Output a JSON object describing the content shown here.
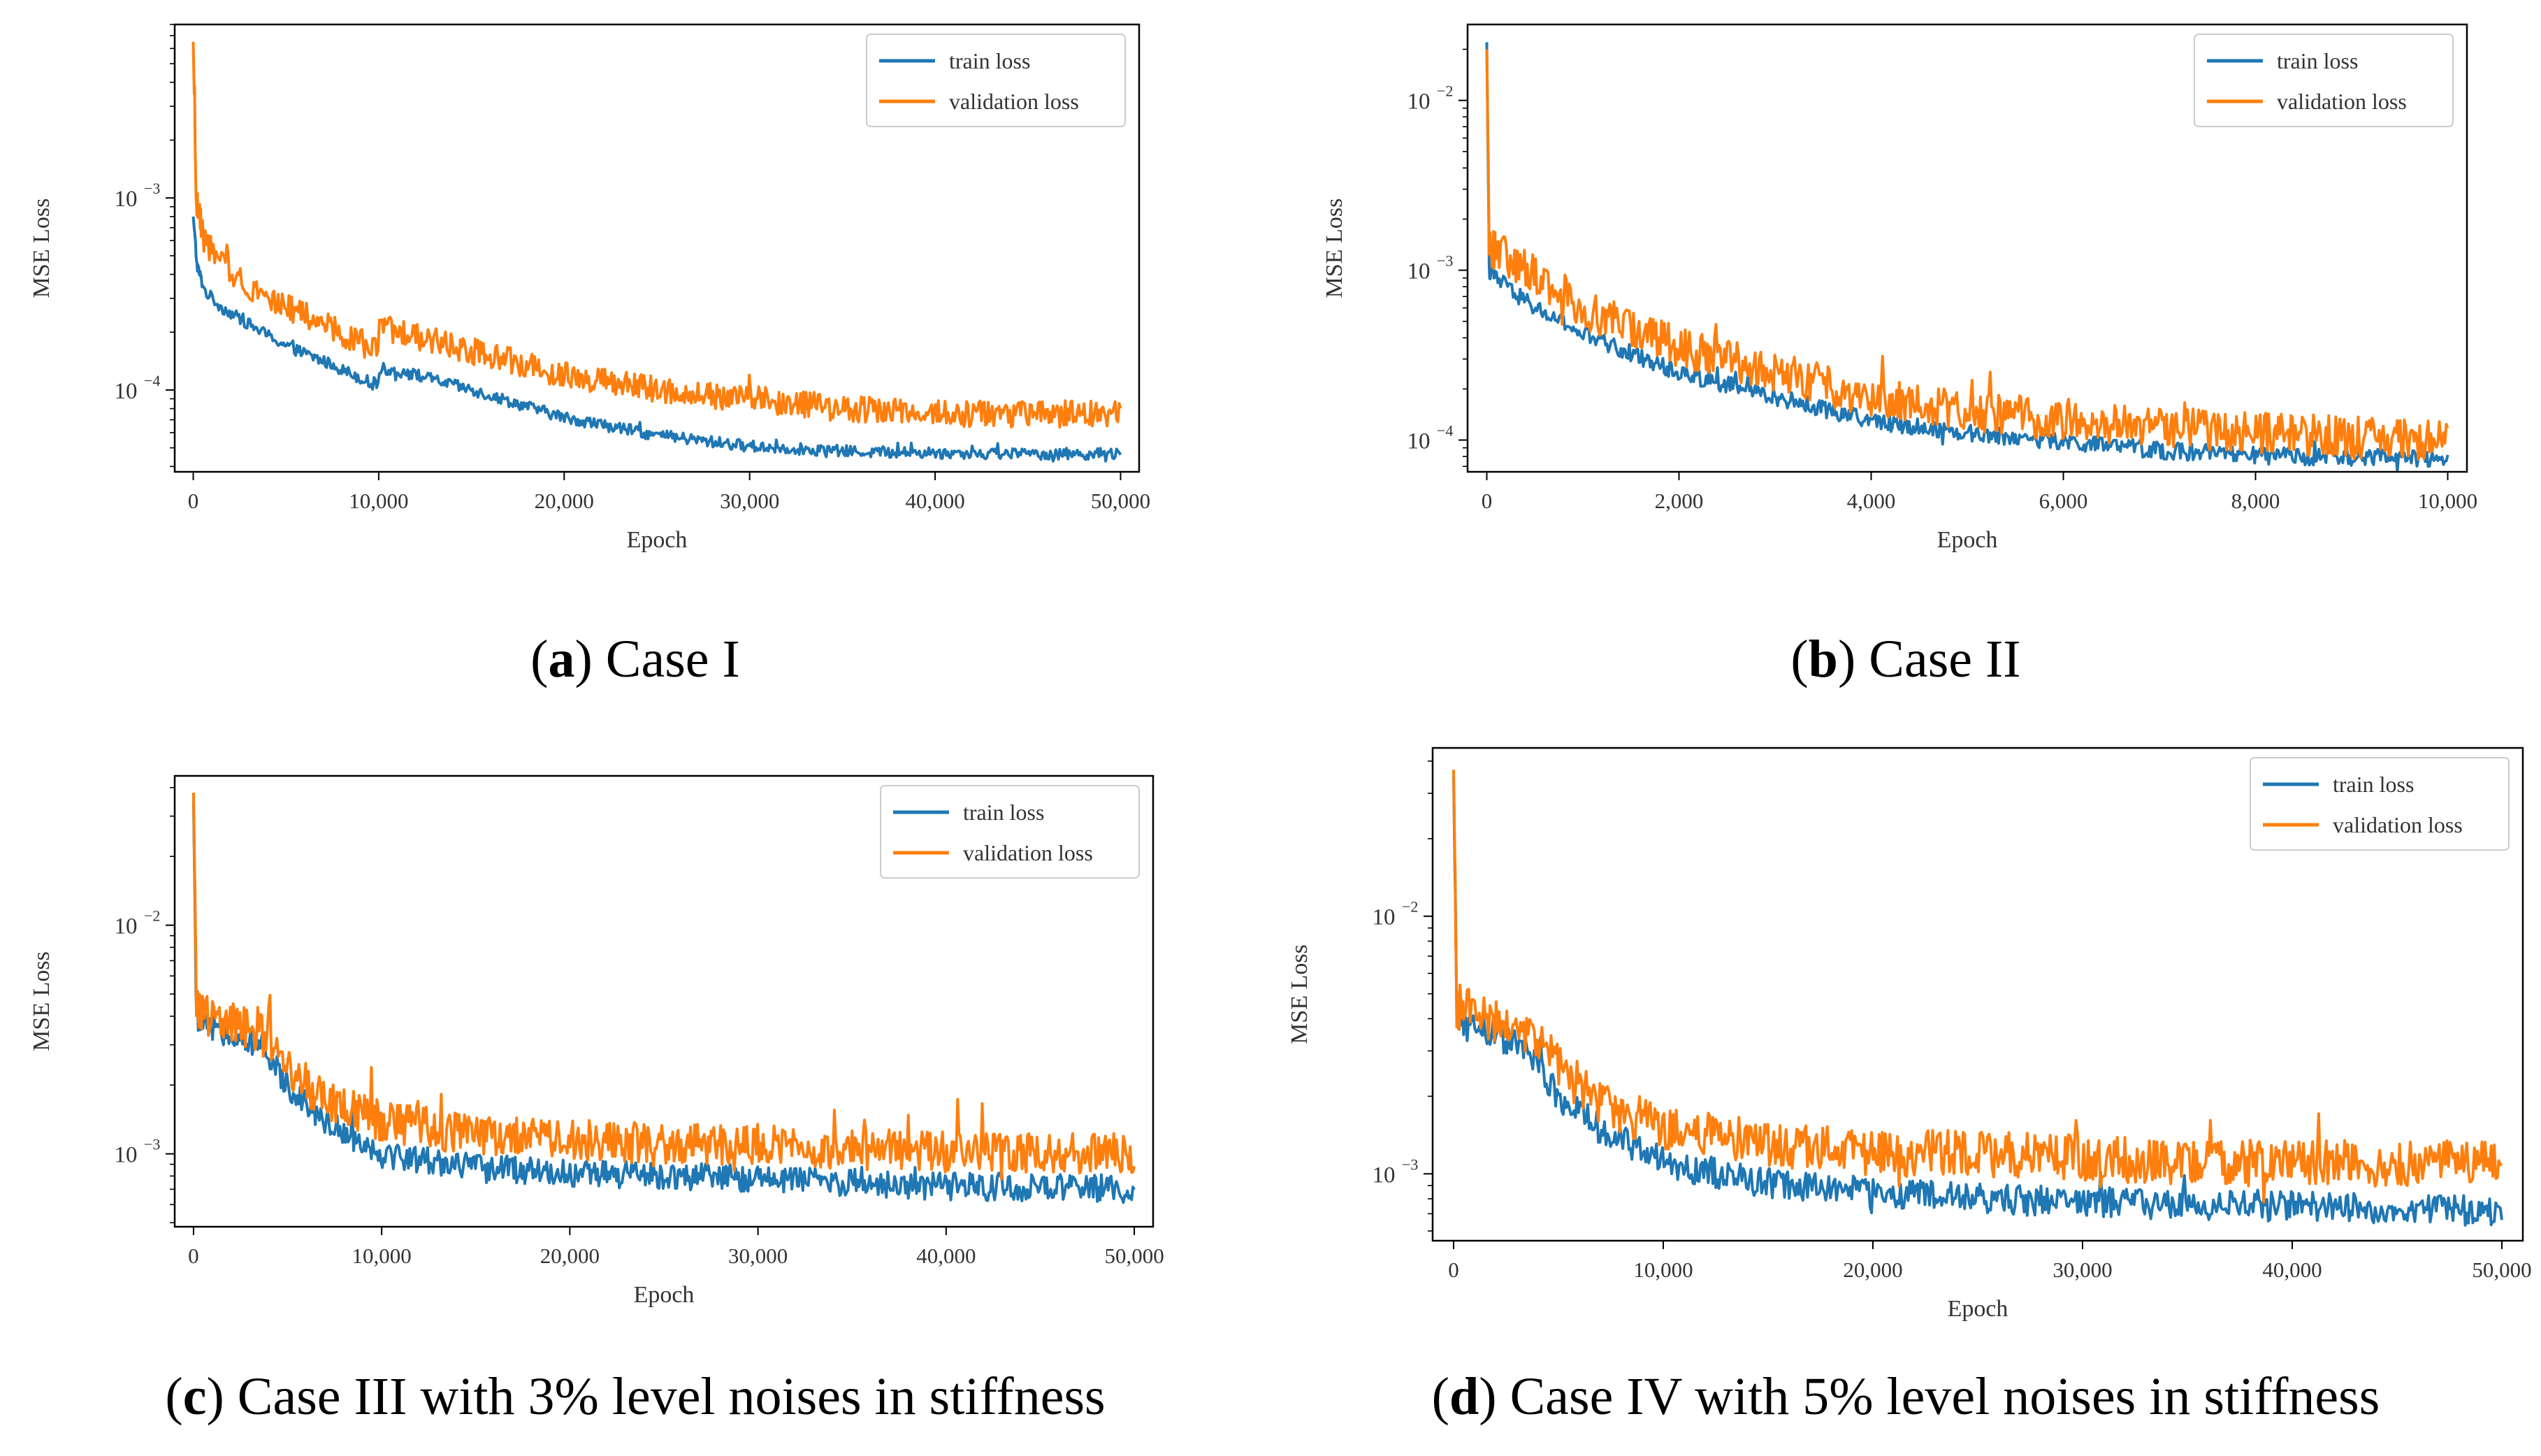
{
  "chart_data": [
    {
      "id": "a",
      "type": "line",
      "caption": {
        "letter": "a",
        "text": " Case I"
      },
      "xlabel": "Epoch",
      "ylabel": "MSE Loss",
      "xlim": [
        -1000,
        51000
      ],
      "ylim": [
        3.75e-05,
        0.008
      ],
      "yscale": "log",
      "xticks": [
        0,
        10000,
        20000,
        30000,
        40000,
        50000
      ],
      "xtick_labels": [
        "0",
        "10,000",
        "20,000",
        "30,000",
        "40,000",
        "50,000"
      ],
      "yticks": [
        {
          "value": 0.0001,
          "base": "10",
          "exp": "−4"
        },
        {
          "value": 0.001,
          "base": "10",
          "exp": "−3"
        }
      ],
      "legend": {
        "position": "top-right",
        "entries": [
          "train loss",
          "validation loss"
        ]
      },
      "series": [
        {
          "name": "train loss",
          "color": "#1f77b4",
          "noise": 0.03,
          "points": [
            [
              0,
              0.0008
            ],
            [
              200,
              0.00045
            ],
            [
              600,
              0.00033
            ],
            [
              1500,
              0.00027
            ],
            [
              3000,
              0.00022
            ],
            [
              5000,
              0.00017
            ],
            [
              7500,
              0.000135
            ],
            [
              9950,
              0.000105
            ],
            [
              10050,
              0.00013
            ],
            [
              12000,
              0.00012
            ],
            [
              15000,
              0.0001
            ],
            [
              20000,
              7.2e-05
            ],
            [
              25000,
              5.8e-05
            ],
            [
              30000,
              5.1e-05
            ],
            [
              35000,
              4.8e-05
            ],
            [
              40000,
              4.7e-05
            ],
            [
              45000,
              4.65e-05
            ],
            [
              50000,
              4.65e-05
            ]
          ]
        },
        {
          "name": "validation loss",
          "color": "#ff7f0e",
          "noise": 0.07,
          "points": [
            [
              0,
              0.0065
            ],
            [
              150,
              0.001
            ],
            [
              600,
              0.0006
            ],
            [
              1500,
              0.00045
            ],
            [
              3000,
              0.00035
            ],
            [
              5000,
              0.00027
            ],
            [
              7500,
              0.00021
            ],
            [
              9950,
              0.00016
            ],
            [
              10050,
              0.00021
            ],
            [
              12000,
              0.00019
            ],
            [
              15000,
              0.00016
            ],
            [
              20000,
              0.00012
            ],
            [
              25000,
              0.0001
            ],
            [
              30000,
              9e-05
            ],
            [
              35000,
              8e-05
            ],
            [
              40000,
              7.6e-05
            ],
            [
              45000,
              7.5e-05
            ],
            [
              50000,
              7.5e-05
            ]
          ]
        }
      ]
    },
    {
      "id": "b",
      "type": "line",
      "caption": {
        "letter": "b",
        "text": " Case II"
      },
      "xlabel": "Epoch",
      "ylabel": "MSE Loss",
      "xlim": [
        -200,
        10200
      ],
      "ylim": [
        6.5e-05,
        0.028
      ],
      "yscale": "log",
      "xticks": [
        0,
        2000,
        4000,
        6000,
        8000,
        10000
      ],
      "xtick_labels": [
        "0",
        "2,000",
        "4,000",
        "6,000",
        "8,000",
        "10,000"
      ],
      "yticks": [
        {
          "value": 0.0001,
          "base": "10",
          "exp": "−4"
        },
        {
          "value": 0.001,
          "base": "10",
          "exp": "−3"
        },
        {
          "value": 0.01,
          "base": "10",
          "exp": "−2"
        }
      ],
      "legend": {
        "position": "top-right",
        "entries": [
          "train loss",
          "validation loss"
        ]
      },
      "series": [
        {
          "name": "train loss",
          "color": "#1f77b4",
          "noise": 0.05,
          "points": [
            [
              0,
              0.022
            ],
            [
              25,
              0.001
            ],
            [
              200,
              0.0008
            ],
            [
              500,
              0.0006
            ],
            [
              1000,
              0.00042
            ],
            [
              2000,
              0.00025
            ],
            [
              3000,
              0.00018
            ],
            [
              4000,
              0.00013
            ],
            [
              5000,
              0.00011
            ],
            [
              6000,
              9.75e-05
            ],
            [
              7000,
              8.7e-05
            ],
            [
              8000,
              8.1e-05
            ],
            [
              9000,
              7.9e-05
            ],
            [
              10000,
              7.8e-05
            ]
          ]
        },
        {
          "name": "validation loss",
          "color": "#ff7f0e",
          "noise": 0.12,
          "points": [
            [
              0,
              0.02
            ],
            [
              25,
              0.0014
            ],
            [
              200,
              0.0012
            ],
            [
              500,
              0.00095
            ],
            [
              1000,
              0.0006
            ],
            [
              2000,
              0.00035
            ],
            [
              3000,
              0.00025
            ],
            [
              4000,
              0.00018
            ],
            [
              5000,
              0.00015
            ],
            [
              6000,
              0.00013
            ],
            [
              7000,
              0.00012
            ],
            [
              8000,
              0.00011
            ],
            [
              9000,
              0.000105
            ],
            [
              10000,
              0.0001
            ]
          ]
        }
      ]
    },
    {
      "id": "c",
      "type": "line",
      "caption": {
        "letter": "c",
        "text": " Case III with 3% level noises in stiffness"
      },
      "xlabel": "Epoch",
      "ylabel": "MSE Loss",
      "xlim": [
        -1000,
        51000
      ],
      "ylim": [
        0.00048,
        0.045
      ],
      "yscale": "log",
      "xticks": [
        0,
        10000,
        20000,
        30000,
        40000,
        50000
      ],
      "xtick_labels": [
        "0",
        "10,000",
        "20,000",
        "30,000",
        "40,000",
        "50,000"
      ],
      "yticks": [
        {
          "value": 0.001,
          "base": "10",
          "exp": "−3"
        },
        {
          "value": 0.01,
          "base": "10",
          "exp": "−2"
        }
      ],
      "legend": {
        "position": "top-right",
        "entries": [
          "train loss",
          "validation loss"
        ]
      },
      "series": [
        {
          "name": "train loss",
          "color": "#1f77b4",
          "noise": 0.06,
          "points": [
            [
              0,
              0.035
            ],
            [
              150,
              0.004
            ],
            [
              800,
              0.0035
            ],
            [
              2000,
              0.0034
            ],
            [
              3500,
              0.003
            ],
            [
              5000,
              0.002
            ],
            [
              7000,
              0.0014
            ],
            [
              10000,
              0.001
            ],
            [
              15000,
              0.00088
            ],
            [
              20000,
              0.00082
            ],
            [
              25000,
              0.0008
            ],
            [
              30000,
              0.00078
            ],
            [
              35000,
              0.00075
            ],
            [
              40000,
              0.00072
            ],
            [
              45000,
              0.00071
            ],
            [
              50000,
              0.0007
            ]
          ]
        },
        {
          "name": "validation loss",
          "color": "#ff7f0e",
          "noise": 0.09,
          "points": [
            [
              0,
              0.038
            ],
            [
              150,
              0.0045
            ],
            [
              800,
              0.004
            ],
            [
              2000,
              0.0038
            ],
            [
              3500,
              0.0034
            ],
            [
              5000,
              0.0024
            ],
            [
              7000,
              0.0017
            ],
            [
              10000,
              0.0014
            ],
            [
              15000,
              0.0012
            ],
            [
              20000,
              0.00115
            ],
            [
              25000,
              0.0011
            ],
            [
              30000,
              0.0011
            ],
            [
              35000,
              0.00105
            ],
            [
              40000,
              0.00102
            ],
            [
              45000,
              0.001
            ],
            [
              50000,
              0.001
            ]
          ]
        }
      ]
    },
    {
      "id": "d",
      "type": "line",
      "caption": {
        "letter": "d",
        "text": " Case IV with 5% level noises in stiffness"
      },
      "xlabel": "Epoch",
      "ylabel": "MSE Loss",
      "xlim": [
        -1000,
        51000
      ],
      "ylim": [
        0.00055,
        0.045
      ],
      "yscale": "log",
      "xticks": [
        0,
        10000,
        20000,
        30000,
        40000,
        50000
      ],
      "xtick_labels": [
        "0",
        "10,000",
        "20,000",
        "30,000",
        "40,000",
        "50,000"
      ],
      "yticks": [
        {
          "value": 0.001,
          "base": "10",
          "exp": "−3"
        },
        {
          "value": 0.01,
          "base": "10",
          "exp": "−2"
        }
      ],
      "legend": {
        "position": "top-right",
        "entries": [
          "train loss",
          "validation loss"
        ]
      },
      "series": [
        {
          "name": "train loss",
          "color": "#1f77b4",
          "noise": 0.06,
          "points": [
            [
              0,
              0.035
            ],
            [
              150,
              0.004
            ],
            [
              800,
              0.0037
            ],
            [
              2000,
              0.0035
            ],
            [
              3500,
              0.003
            ],
            [
              5000,
              0.002
            ],
            [
              7000,
              0.0015
            ],
            [
              10000,
              0.0011
            ],
            [
              15000,
              0.00092
            ],
            [
              20000,
              0.00085
            ],
            [
              25000,
              0.0008
            ],
            [
              30000,
              0.00078
            ],
            [
              35000,
              0.00076
            ],
            [
              40000,
              0.00075
            ],
            [
              45000,
              0.00073
            ],
            [
              50000,
              0.00072
            ]
          ]
        },
        {
          "name": "validation loss",
          "color": "#ff7f0e",
          "noise": 0.09,
          "points": [
            [
              0,
              0.037
            ],
            [
              150,
              0.0045
            ],
            [
              800,
              0.0042
            ],
            [
              2000,
              0.004
            ],
            [
              3500,
              0.0036
            ],
            [
              5000,
              0.0026
            ],
            [
              7000,
              0.0019
            ],
            [
              10000,
              0.0015
            ],
            [
              15000,
              0.0013
            ],
            [
              20000,
              0.0012
            ],
            [
              25000,
              0.0012
            ],
            [
              30000,
              0.00115
            ],
            [
              35000,
              0.0011
            ],
            [
              40000,
              0.0011
            ],
            [
              45000,
              0.0011
            ],
            [
              50000,
              0.0011
            ]
          ]
        }
      ]
    }
  ]
}
